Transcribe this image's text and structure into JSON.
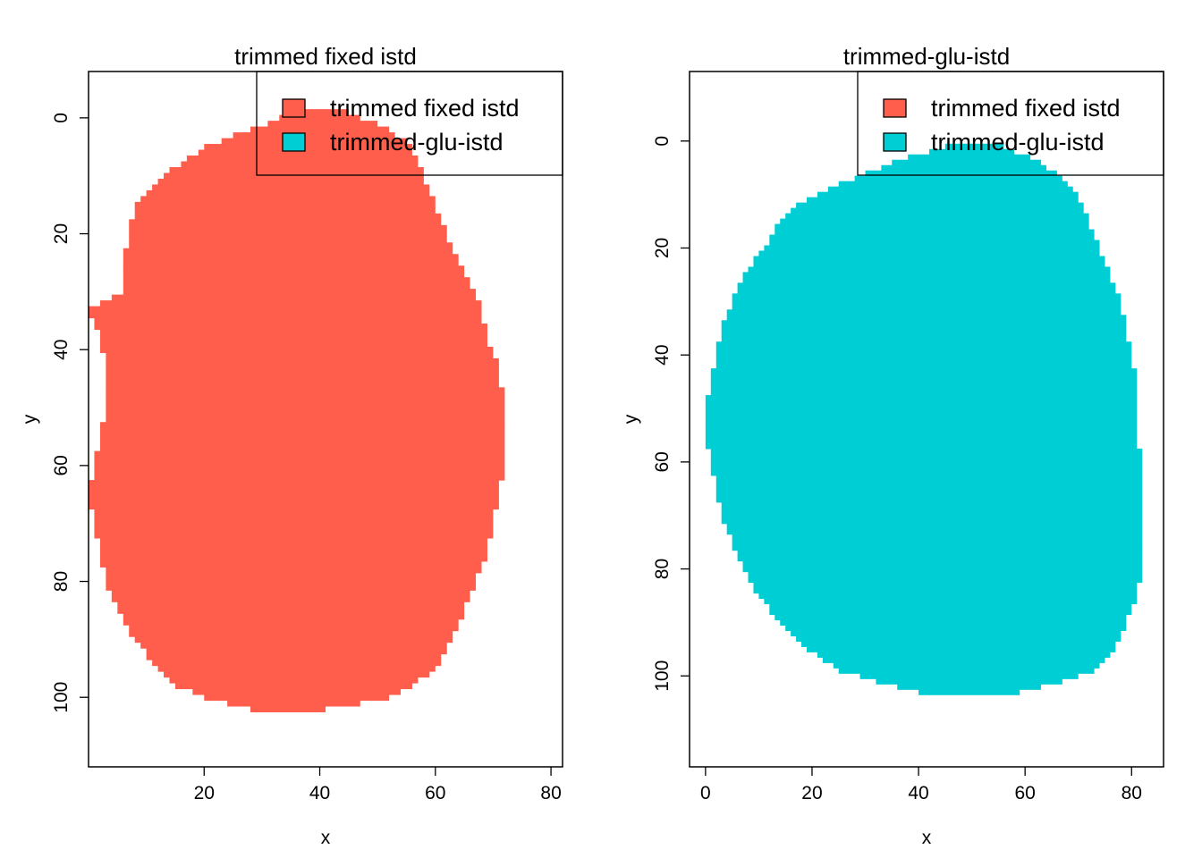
{
  "chart_data": [
    {
      "type": "heatmap",
      "title": "trimmed fixed istd",
      "xlabel": "x",
      "ylabel": "y",
      "xlim": [
        0,
        82
      ],
      "ylim": [
        -8,
        112
      ],
      "y_reversed": true,
      "x_ticks": [
        20,
        40,
        60,
        80
      ],
      "y_ticks": [
        0,
        20,
        40,
        60,
        80,
        100
      ],
      "grid": false,
      "legend": {
        "position": "top-right",
        "entries": [
          {
            "label": "trimmed fixed istd",
            "color": "#FF5E4C"
          },
          {
            "label": "trimmed-glu-istd",
            "color": "#00CED5"
          }
        ]
      },
      "region": {
        "name": "trimmed fixed istd",
        "color": "#FF5E4C",
        "boundary_y": [
          -1,
          2,
          5,
          10,
          15,
          20,
          25,
          30,
          33,
          38,
          43,
          50,
          55,
          60,
          65,
          70,
          75,
          80,
          85,
          90,
          95,
          98,
          100,
          102
        ],
        "x_left": [
          36,
          28,
          20,
          13,
          8,
          7,
          6,
          6,
          0,
          2,
          3,
          3,
          2,
          1,
          0,
          1,
          2,
          3,
          5,
          8,
          12,
          15,
          20,
          28
        ],
        "x_right": [
          44,
          51,
          55,
          57,
          59,
          61,
          63,
          66,
          67,
          68,
          70,
          71,
          71,
          71,
          70,
          69,
          68,
          66,
          64,
          62,
          59,
          55,
          51,
          40
        ]
      }
    },
    {
      "type": "heatmap",
      "title": "trimmed-glu-istd",
      "xlabel": "x",
      "ylabel": "y",
      "xlim": [
        -3,
        86
      ],
      "ylim": [
        -13,
        117
      ],
      "y_reversed": true,
      "x_ticks": [
        0,
        20,
        40,
        60,
        80
      ],
      "y_ticks": [
        0,
        20,
        40,
        60,
        80,
        100
      ],
      "grid": false,
      "legend": {
        "position": "top-right",
        "entries": [
          {
            "label": "trimmed fixed istd",
            "color": "#FF5E4C"
          },
          {
            "label": "trimmed-glu-istd",
            "color": "#00CED5"
          }
        ]
      },
      "region": {
        "name": "trimmed-glu-istd",
        "color": "#00CED5",
        "boundary_y": [
          1,
          4,
          8,
          12,
          16,
          20,
          25,
          30,
          35,
          40,
          45,
          50,
          55,
          60,
          65,
          70,
          75,
          80,
          85,
          90,
          95,
          99,
          101,
          103
        ],
        "x_left": [
          45,
          35,
          25,
          17,
          13,
          11,
          7,
          5,
          3,
          2,
          1,
          0,
          0,
          1,
          2,
          3,
          5,
          7,
          10,
          14,
          19,
          25,
          32,
          40
        ],
        "x_right": [
          55,
          62,
          67,
          70,
          71,
          73,
          75,
          77,
          78,
          79,
          80,
          80,
          80,
          81,
          81,
          81,
          81,
          81,
          80,
          78,
          76,
          72,
          66,
          58
        ]
      }
    }
  ]
}
